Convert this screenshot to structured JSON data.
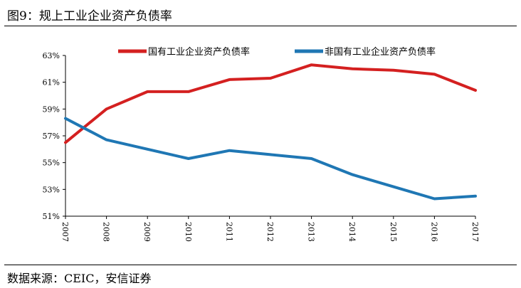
{
  "header": {
    "title": "图9：规上工业企业资产负债率"
  },
  "footer": {
    "source": "数据来源：CEIC，安信证券"
  },
  "chart_data": {
    "type": "line",
    "title": "图9：规上工业企业资产负债率",
    "xlabel": "",
    "ylabel": "",
    "x": [
      "2007",
      "2008",
      "2009",
      "2010",
      "2011",
      "2012",
      "2013",
      "2014",
      "2015",
      "2016",
      "2017"
    ],
    "ylim": [
      51,
      63
    ],
    "yticks": [
      51,
      53,
      55,
      57,
      59,
      61,
      63
    ],
    "ytick_labels": [
      "51%",
      "53%",
      "55%",
      "57%",
      "59%",
      "61%",
      "63%"
    ],
    "grid": false,
    "legend": "top",
    "series": [
      {
        "name": "国有工业企业资产负债率",
        "color": "#d42020",
        "values": [
          56.5,
          59.0,
          60.3,
          60.3,
          61.2,
          61.3,
          62.3,
          62.0,
          61.9,
          61.6,
          60.4
        ]
      },
      {
        "name": "非国有工业企业资产负债率",
        "color": "#1f77b4",
        "values": [
          58.3,
          56.7,
          56.0,
          55.3,
          55.9,
          55.6,
          55.3,
          54.1,
          53.2,
          52.3,
          52.5
        ]
      }
    ]
  }
}
